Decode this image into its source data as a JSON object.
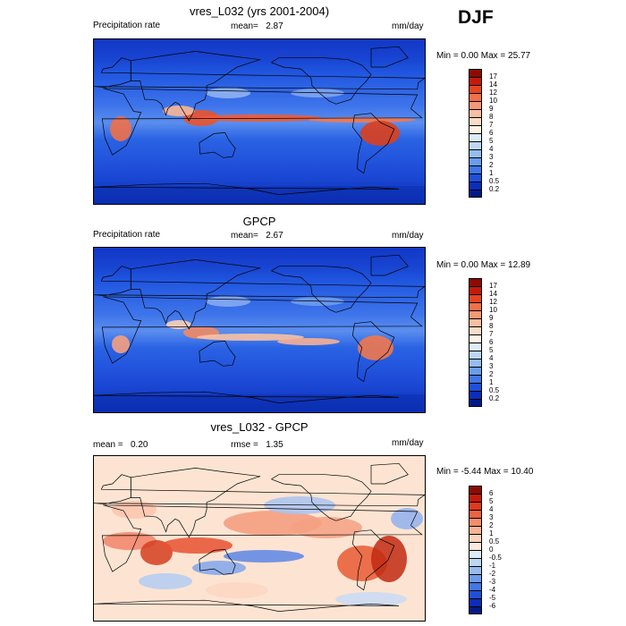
{
  "season": "DJF",
  "panels": [
    {
      "title": "vres_L032 (yrs 2001-2004)",
      "left_label": "Precipitation rate",
      "mid_label": "mean=",
      "mid_value": "2.87",
      "units": "mm/day",
      "minmax": "Min =   0.00 Max =  25.77",
      "colorbar_labels": [
        "17",
        "14",
        "12",
        "10",
        "9",
        "8",
        "7",
        "6",
        "5",
        "4",
        "3",
        "2",
        "1",
        "0.5",
        "0.2"
      ],
      "colorbar_colors": [
        "#8c0b00",
        "#c41a0c",
        "#e6451f",
        "#f2704a",
        "#f59876",
        "#f9bfa3",
        "#fbdcc8",
        "#fff3e6",
        "#ddecf9",
        "#bcd7f5",
        "#94bdf0",
        "#6a9ded",
        "#4176e8",
        "#1f4fdc",
        "#0b2dbb",
        "#021a8a"
      ]
    },
    {
      "title": "GPCP",
      "left_label": "Precipitation rate",
      "mid_label": "mean=",
      "mid_value": "2.67",
      "units": "mm/day",
      "minmax": "Min =   0.00 Max =  12.89",
      "colorbar_labels": [
        "17",
        "14",
        "12",
        "10",
        "9",
        "8",
        "7",
        "6",
        "5",
        "4",
        "3",
        "2",
        "1",
        "0.5",
        "0.2"
      ],
      "colorbar_colors": [
        "#8c0b00",
        "#c41a0c",
        "#e6451f",
        "#f2704a",
        "#f59876",
        "#f9bfa3",
        "#fbdcc8",
        "#fff3e6",
        "#ddecf9",
        "#bcd7f5",
        "#94bdf0",
        "#6a9ded",
        "#4176e8",
        "#1f4fdc",
        "#0b2dbb",
        "#021a8a"
      ]
    },
    {
      "title": "vres_L032 - GPCP",
      "left_label": "mean =",
      "left_value": "0.20",
      "mid_label": "rmse =",
      "mid_value": "1.35",
      "units": "mm/day",
      "minmax": "Min =  -5.44 Max =  10.40",
      "colorbar_labels": [
        "6",
        "5",
        "4",
        "3",
        "2",
        "1",
        "0.5",
        "0",
        "-0.5",
        "-1",
        "-2",
        "-3",
        "-4",
        "-5",
        "-6"
      ],
      "colorbar_colors": [
        "#8c0b00",
        "#c41a0c",
        "#dd3a1e",
        "#ec6341",
        "#f48e6c",
        "#f8b394",
        "#fbd2bb",
        "#fde9dc",
        "#dcebf8",
        "#bdd8f3",
        "#97bdee",
        "#6e9cea",
        "#4577e3",
        "#2150d6",
        "#0d2db8",
        "#021a8a"
      ]
    }
  ]
}
